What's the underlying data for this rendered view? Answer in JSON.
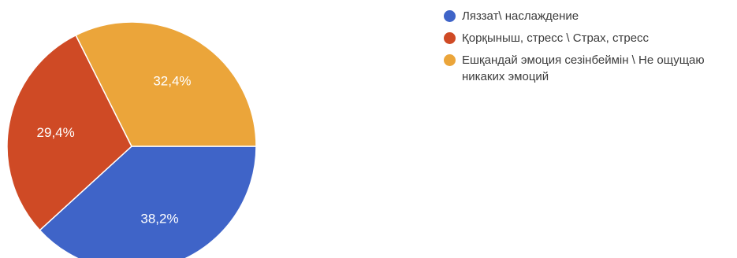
{
  "chart_data": {
    "type": "pie",
    "slices": [
      {
        "label": "Ляззат\\ наслаждение",
        "value": 38.2,
        "display": "38,2%",
        "color": "#3f64c8"
      },
      {
        "label": "Қорқыныш, стресс \\ Страх, стресс",
        "value": 29.4,
        "display": "29,4%",
        "color": "#cf4a25"
      },
      {
        "label": "Ешқандай эмоция сезінбеймін \\ Не ощущаю никаких эмоций",
        "value": 32.4,
        "display": "32,4%",
        "color": "#eba53a"
      }
    ],
    "legend_position": "right"
  }
}
